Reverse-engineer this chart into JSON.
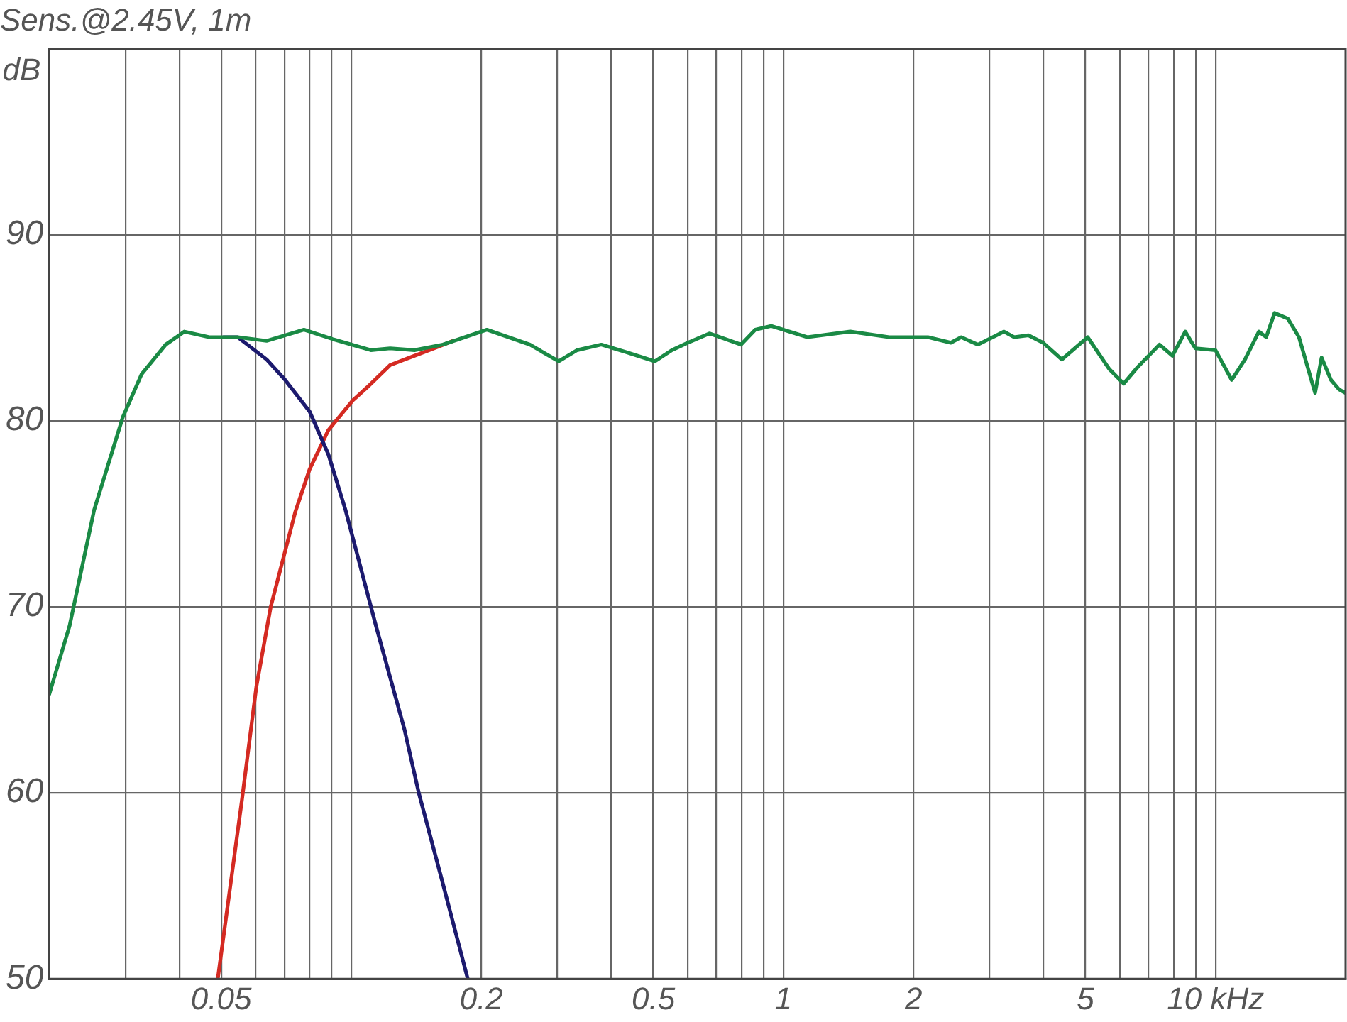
{
  "chart_data": {
    "type": "line",
    "title": "Sens.@2.45V, 1m",
    "ylabel": "dB",
    "log": "x",
    "grid": true,
    "xlim": [
      0.02,
      20
    ],
    "ylim": [
      50,
      100
    ],
    "xticks": [
      {
        "value": 0.03,
        "label": null
      },
      {
        "value": 0.04,
        "label": null
      },
      0.05,
      {
        "value": 0.06,
        "label": null
      },
      {
        "value": 0.07,
        "label": null
      },
      {
        "value": 0.08,
        "label": null
      },
      {
        "value": 0.09,
        "label": null
      },
      {
        "value": 0.1,
        "label": null
      },
      0.2,
      {
        "value": 0.3,
        "label": null
      },
      {
        "value": 0.4,
        "label": null
      },
      0.5,
      {
        "value": 0.6,
        "label": null
      },
      {
        "value": 0.7,
        "label": null
      },
      {
        "value": 0.8,
        "label": null
      },
      {
        "value": 0.9,
        "label": null
      },
      1,
      2,
      {
        "value": 3,
        "label": null
      },
      {
        "value": 4,
        "label": null
      },
      5,
      {
        "value": 6,
        "label": null
      },
      {
        "value": 7,
        "label": null
      },
      {
        "value": 8,
        "label": null
      },
      {
        "value": 9,
        "label": null
      },
      {
        "value": 10,
        "label": "10 kHz"
      }
    ],
    "yticks": [
      50,
      60,
      70,
      80,
      90
    ],
    "series": [
      {
        "color": "#1a8a45",
        "x": [
          0.02,
          0.0223,
          0.0254,
          0.0296,
          0.0327,
          0.0372,
          0.0411,
          0.0469,
          0.0506,
          0.0546,
          0.0637,
          0.0777,
          0.0905,
          0.111,
          0.123,
          0.14,
          0.163,
          0.206,
          0.259,
          0.302,
          0.333,
          0.379,
          0.432,
          0.504,
          0.552,
          0.601,
          0.674,
          0.798,
          0.861,
          0.937,
          1.136,
          1.428,
          1.757,
          2.16,
          2.44,
          2.58,
          2.82,
          3.24,
          3.42,
          3.69,
          3.99,
          4.41,
          5.06,
          5.67,
          6.13,
          6.61,
          7.42,
          7.95,
          8.51,
          8.98,
          10.0,
          10.9,
          11.7,
          12.6,
          13.1,
          13.7,
          14.7,
          15.6,
          17.0,
          17.6,
          18.5,
          19.3,
          20
        ],
        "values": [
          65.3,
          69.0,
          75.2,
          80.2,
          82.5,
          84.1,
          84.8,
          84.5,
          84.5,
          84.5,
          84.3,
          84.9,
          84.4,
          83.8,
          83.9,
          83.8,
          84.1,
          84.9,
          84.1,
          83.2,
          83.8,
          84.1,
          83.7,
          83.2,
          83.8,
          84.2,
          84.7,
          84.1,
          84.9,
          85.1,
          84.5,
          84.8,
          84.5,
          84.5,
          84.2,
          84.5,
          84.1,
          84.8,
          84.5,
          84.6,
          84.2,
          83.3,
          84.5,
          82.8,
          82.0,
          82.9,
          84.1,
          83.5,
          84.8,
          83.9,
          83.8,
          82.2,
          83.3,
          84.8,
          84.5,
          85.8,
          85.5,
          84.5,
          81.5,
          83.4,
          82.2,
          81.7,
          81.5
        ]
      },
      {
        "color": "#1c1a6e",
        "x": [
          0.0506,
          0.0546,
          0.0637,
          0.0703,
          0.0801,
          0.0885,
          0.097,
          0.114,
          0.1328,
          0.1433,
          0.163,
          0.186
        ],
        "values": [
          84.5,
          84.5,
          83.3,
          82.2,
          80.5,
          78.2,
          75.2,
          69.0,
          63.4,
          60.0,
          55.1,
          50
        ]
      },
      {
        "color": "#d42a22",
        "x": [
          0.0491,
          0.0559,
          0.0603,
          0.0651,
          0.0742,
          0.0801,
          0.0885,
          0.1008,
          0.1088,
          0.123,
          0.14,
          0.1596,
          0.172
        ],
        "values": [
          50,
          59.7,
          65.7,
          70,
          75.1,
          77.4,
          79.5,
          81.1,
          81.8,
          83.0,
          83.5,
          84.0,
          84.3
        ]
      }
    ]
  }
}
